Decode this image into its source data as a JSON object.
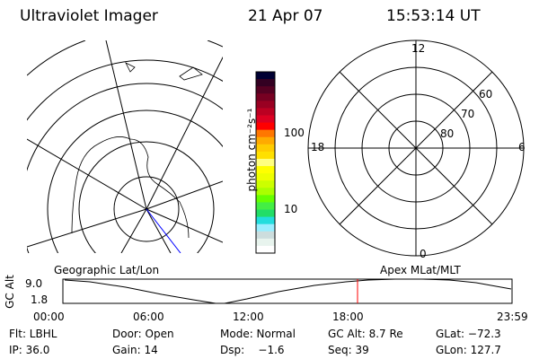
{
  "header": {
    "instrument": "Ultraviolet Imager",
    "date": "21 Apr 07",
    "time": "15:53:14 UT"
  },
  "geo_map": {
    "label": "Geographic Lat/Lon",
    "track_color": "#0000ff"
  },
  "colorbar": {
    "unit_label": "photon cm⁻²s⁻¹",
    "ticks": [
      "100",
      "10"
    ],
    "colors": [
      "#000033",
      "#330022",
      "#550022",
      "#770022",
      "#990022",
      "#bb0022",
      "#dd0022",
      "#ff0000",
      "#ff7700",
      "#ffaa00",
      "#ffcc00",
      "#ffe000",
      "#ffff80",
      "#ffff00",
      "#eeff00",
      "#ccff00",
      "#aaff00",
      "#66ff00",
      "#44ee44",
      "#22dd66",
      "#22dddd",
      "#99eeff",
      "#ccdddd",
      "#e8f4ee",
      "#ffffff"
    ]
  },
  "mlt_map": {
    "label": "Apex MLat/MLT",
    "mlt_labels": [
      "12",
      "6",
      "0",
      "18"
    ],
    "lat_labels": [
      "60",
      "70",
      "80"
    ]
  },
  "timeline": {
    "ylabel": "GC Alt",
    "y_ticks": [
      "9.0",
      "1.8"
    ],
    "x_ticks": [
      "00:00",
      "06:00",
      "12:00",
      "18:00",
      "23:59"
    ],
    "current_time_marker": "15:53",
    "marker_color": "#ff0000"
  },
  "status": {
    "row1": [
      "Flt: LBHL",
      "Door: Open",
      "Mode: Normal",
      "GC Alt: 8.7 Re",
      "GLat: −72.3"
    ],
    "row2": [
      "IP: 36.0",
      "Gain: 14",
      "Dsp:    −1.6",
      "Seq: 39",
      "GLon: 127.7"
    ]
  }
}
